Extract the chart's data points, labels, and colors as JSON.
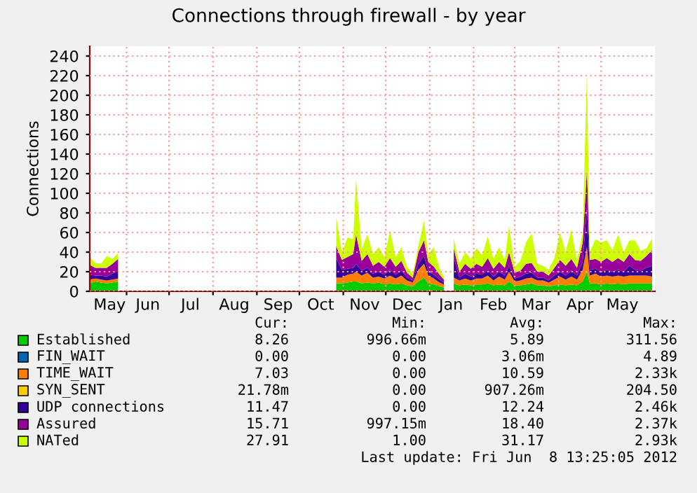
{
  "chart_data": {
    "type": "area",
    "stacked": true,
    "title": "Connections through firewall - by year",
    "ylabel": "Connections",
    "x": [
      "2011-05-06",
      "2011-05-10",
      "2011-05-14",
      "2011-05-18",
      "2011-05-22",
      "2011-05-26",
      "2011-05-28",
      "2011-10-26",
      "2011-10-27",
      "2011-10-31",
      "2011-11-04",
      "2011-11-08",
      "2011-11-10",
      "2011-11-14",
      "2011-11-18",
      "2011-11-22",
      "2011-11-26",
      "2011-11-30",
      "2011-12-04",
      "2011-12-08",
      "2011-12-12",
      "2011-12-16",
      "2011-12-20",
      "2011-12-24",
      "2011-12-28",
      "2011-12-31",
      "2012-01-04",
      "2012-01-08",
      "2012-01-11",
      "2012-01-12",
      "2012-01-17",
      "2012-01-18",
      "2012-01-22",
      "2012-01-26",
      "2012-01-30",
      "2012-02-03",
      "2012-02-07",
      "2012-02-11",
      "2012-02-15",
      "2012-02-19",
      "2012-02-23",
      "2012-02-26",
      "2012-03-01",
      "2012-03-05",
      "2012-03-09",
      "2012-03-13",
      "2012-03-17",
      "2012-03-21",
      "2012-03-25",
      "2012-03-29",
      "2012-04-02",
      "2012-04-06",
      "2012-04-10",
      "2012-04-14",
      "2012-04-18",
      "2012-04-21",
      "2012-04-23",
      "2012-04-27",
      "2012-05-01",
      "2012-05-05",
      "2012-05-09",
      "2012-05-13",
      "2012-05-17",
      "2012-05-21",
      "2012-05-25",
      "2012-05-29",
      "2012-06-02",
      "2012-06-06"
    ],
    "series": [
      {
        "name": "Established",
        "color": "#00cc00",
        "values": [
          8,
          10,
          9,
          8,
          9,
          10,
          null,
          null,
          8,
          8,
          9,
          10,
          10,
          8,
          9,
          8,
          9,
          7,
          8,
          7,
          8,
          6,
          5,
          10,
          14,
          8,
          7,
          5,
          4,
          null,
          null,
          8,
          6,
          7,
          6,
          7,
          7,
          8,
          6,
          7,
          6,
          10,
          6,
          6,
          7,
          8,
          6,
          6,
          5,
          6,
          7,
          6,
          7,
          6,
          10,
          20,
          8,
          8,
          7,
          8,
          7,
          8,
          7,
          8,
          8,
          8,
          8,
          8
        ]
      },
      {
        "name": "FIN_WAIT",
        "color": "#0066b3",
        "values": [
          null,
          null,
          null,
          null,
          null,
          null,
          null,
          null,
          null,
          null,
          null,
          null,
          null,
          null,
          null,
          null,
          null,
          null,
          null,
          null,
          null,
          null,
          null,
          null,
          null,
          null,
          null,
          null,
          null,
          null,
          null,
          null,
          null,
          null,
          null,
          null,
          null,
          null,
          null,
          null,
          null,
          null,
          null,
          null,
          null,
          null,
          null,
          null,
          null,
          null,
          null,
          null,
          null,
          null,
          null,
          null,
          null,
          null,
          null,
          null,
          null,
          null,
          null,
          null,
          null,
          null,
          null,
          null
        ]
      },
      {
        "name": "TIME_WAIT",
        "color": "#ff8000",
        "values": [
          4,
          3,
          3,
          3,
          3,
          3,
          null,
          null,
          6,
          6,
          8,
          8,
          10,
          8,
          10,
          6,
          6,
          6,
          8,
          6,
          8,
          5,
          4,
          12,
          14,
          8,
          6,
          4,
          3,
          null,
          null,
          6,
          5,
          6,
          5,
          6,
          6,
          8,
          5,
          8,
          6,
          10,
          4,
          5,
          6,
          6,
          5,
          5,
          4,
          6,
          8,
          6,
          8,
          6,
          12,
          25,
          8,
          10,
          8,
          8,
          8,
          8,
          8,
          8,
          8,
          8,
          8,
          7
        ]
      },
      {
        "name": "SYN_SENT",
        "color": "#ffcc00",
        "values": [
          null,
          null,
          null,
          null,
          null,
          null,
          null,
          null,
          null,
          null,
          null,
          null,
          null,
          null,
          null,
          null,
          null,
          null,
          null,
          null,
          null,
          null,
          null,
          null,
          null,
          null,
          null,
          null,
          null,
          null,
          null,
          null,
          null,
          null,
          null,
          null,
          null,
          null,
          null,
          null,
          null,
          null,
          null,
          null,
          null,
          null,
          null,
          null,
          null,
          null,
          null,
          null,
          null,
          null,
          null,
          null,
          null,
          null,
          null,
          null,
          null,
          null,
          null,
          null,
          null,
          null,
          null,
          null
        ]
      },
      {
        "name": "UDP connections",
        "color": "#330099",
        "values": [
          5,
          3,
          4,
          4,
          6,
          8,
          null,
          null,
          20,
          8,
          6,
          6,
          8,
          5,
          5,
          4,
          5,
          4,
          6,
          4,
          5,
          3,
          2,
          6,
          8,
          4,
          4,
          3,
          2,
          null,
          null,
          20,
          3,
          5,
          4,
          5,
          4,
          6,
          4,
          5,
          4,
          6,
          3,
          4,
          5,
          5,
          3,
          3,
          2,
          4,
          5,
          4,
          6,
          4,
          8,
          40,
          6,
          5,
          5,
          6,
          5,
          6,
          5,
          10,
          6,
          5,
          8,
          11
        ]
      },
      {
        "name": "Assured",
        "color": "#990099",
        "values": [
          10,
          8,
          8,
          9,
          10,
          12,
          null,
          null,
          12,
          10,
          12,
          14,
          30,
          10,
          14,
          8,
          10,
          8,
          12,
          8,
          10,
          5,
          3,
          12,
          16,
          10,
          8,
          5,
          3,
          null,
          null,
          10,
          6,
          10,
          8,
          10,
          8,
          12,
          8,
          10,
          8,
          14,
          6,
          6,
          10,
          10,
          6,
          6,
          5,
          8,
          12,
          10,
          12,
          8,
          20,
          40,
          10,
          10,
          10,
          12,
          10,
          12,
          10,
          12,
          10,
          10,
          12,
          16
        ]
      },
      {
        "name": "NATed",
        "color": "#ccff00",
        "values": [
          8,
          5,
          4,
          12,
          5,
          6,
          null,
          null,
          30,
          8,
          20,
          15,
          57,
          12,
          20,
          12,
          15,
          10,
          28,
          10,
          14,
          6,
          4,
          6,
          20,
          8,
          20,
          6,
          3,
          null,
          null,
          10,
          8,
          12,
          10,
          16,
          12,
          22,
          10,
          15,
          8,
          27,
          6,
          10,
          22,
          30,
          8,
          6,
          6,
          10,
          28,
          14,
          30,
          8,
          10,
          100,
          8,
          20,
          20,
          18,
          12,
          24,
          10,
          14,
          20,
          10,
          8,
          12
        ]
      }
    ],
    "xlim": [
      "2011-05-06",
      "2012-06-08"
    ],
    "xticks": [
      {
        "value": "2011-05-20",
        "label": "May"
      },
      {
        "value": "2011-06-01",
        "label": null
      },
      {
        "value": "2011-06-16",
        "label": "Jun"
      },
      {
        "value": "2011-07-01",
        "label": null
      },
      {
        "value": "2011-07-16",
        "label": "Jul"
      },
      {
        "value": "2011-08-01",
        "label": null
      },
      {
        "value": "2011-08-16",
        "label": "Aug"
      },
      {
        "value": "2011-09-01",
        "label": null
      },
      {
        "value": "2011-09-16",
        "label": "Sep"
      },
      {
        "value": "2011-10-01",
        "label": null
      },
      {
        "value": "2011-10-16",
        "label": "Oct"
      },
      {
        "value": "2011-11-01",
        "label": null
      },
      {
        "value": "2011-11-16",
        "label": "Nov"
      },
      {
        "value": "2011-12-01",
        "label": null
      },
      {
        "value": "2011-12-16",
        "label": "Dec"
      },
      {
        "value": "2012-01-01",
        "label": null
      },
      {
        "value": "2012-01-16",
        "label": "Jan"
      },
      {
        "value": "2012-02-01",
        "label": null
      },
      {
        "value": "2012-02-15",
        "label": "Feb"
      },
      {
        "value": "2012-03-01",
        "label": null
      },
      {
        "value": "2012-03-16",
        "label": "Mar"
      },
      {
        "value": "2012-04-01",
        "label": null
      },
      {
        "value": "2012-04-16",
        "label": "Apr"
      },
      {
        "value": "2012-05-01",
        "label": null
      },
      {
        "value": "2012-05-16",
        "label": "May"
      }
    ],
    "ylim": [
      0,
      250
    ],
    "yticks": [
      0,
      20,
      40,
      60,
      80,
      100,
      120,
      140,
      160,
      180,
      200,
      220,
      240
    ],
    "grid": true,
    "legend": "bottom",
    "annotations": [
      "Cur:",
      "Min:",
      "Avg:",
      "Max:",
      "8.26",
      "996.66m",
      "5.89",
      "311.56",
      "0.00",
      "0.00",
      "3.06m",
      "4.89",
      "7.03",
      "0.00",
      "10.59",
      "2.33k",
      "21.78m",
      "0.00",
      "907.26m",
      "204.50",
      "11.47",
      "0.00",
      "12.24",
      "2.46k",
      "15.71",
      "997.15m",
      "18.40",
      "2.37k",
      "27.91",
      "1.00",
      "31.17",
      "2.93k",
      "Last update: Fri Jun  8 13:25:05 2012"
    ]
  }
}
